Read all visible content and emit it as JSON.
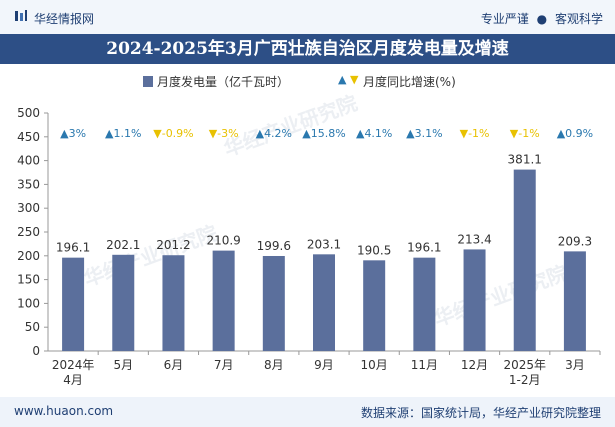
{
  "header": {
    "brand": "华经情报网",
    "slogan_left": "专业严谨",
    "slogan_sep": "●",
    "slogan_right": "客观科学"
  },
  "chart_data": {
    "type": "bar",
    "title": "2024-2025年3月广西壮族自治区月度发电量及增速",
    "categories": [
      "2024年\n4月",
      "5月",
      "6月",
      "7月",
      "8月",
      "9月",
      "10月",
      "11月",
      "12月",
      "2025年\n1-2月",
      "3月"
    ],
    "series": [
      {
        "name": "月度发电量（亿千瓦时）",
        "values": [
          196.1,
          202.1,
          201.2,
          210.9,
          199.6,
          203.1,
          190.5,
          196.1,
          213.4,
          381.1,
          209.3
        ],
        "color": "#5b6f9c"
      },
      {
        "name": "月度同比增速(%)",
        "values": [
          3,
          1.1,
          -0.9,
          -3,
          4.2,
          15.8,
          4.1,
          3.1,
          -1,
          -1,
          0.9
        ],
        "labels": [
          "3%",
          "1.1%",
          "-0.9%",
          "-3%",
          "4.2%",
          "15.8%",
          "4.1%",
          "3.1%",
          "-1%",
          "-1%",
          "0.9%"
        ],
        "up_color": "#2a78ae",
        "down_color": "#e8c100"
      }
    ],
    "ylim": [
      0,
      500
    ],
    "yticks": [
      0,
      50,
      100,
      150,
      200,
      250,
      300,
      350,
      400,
      450,
      500
    ],
    "legend_position": "top-center",
    "grid": false
  },
  "footer": {
    "url": "www.huaon.com",
    "source": "数据来源：国家统计局，华经产业研究院整理"
  },
  "watermark": "华经产业研究院"
}
